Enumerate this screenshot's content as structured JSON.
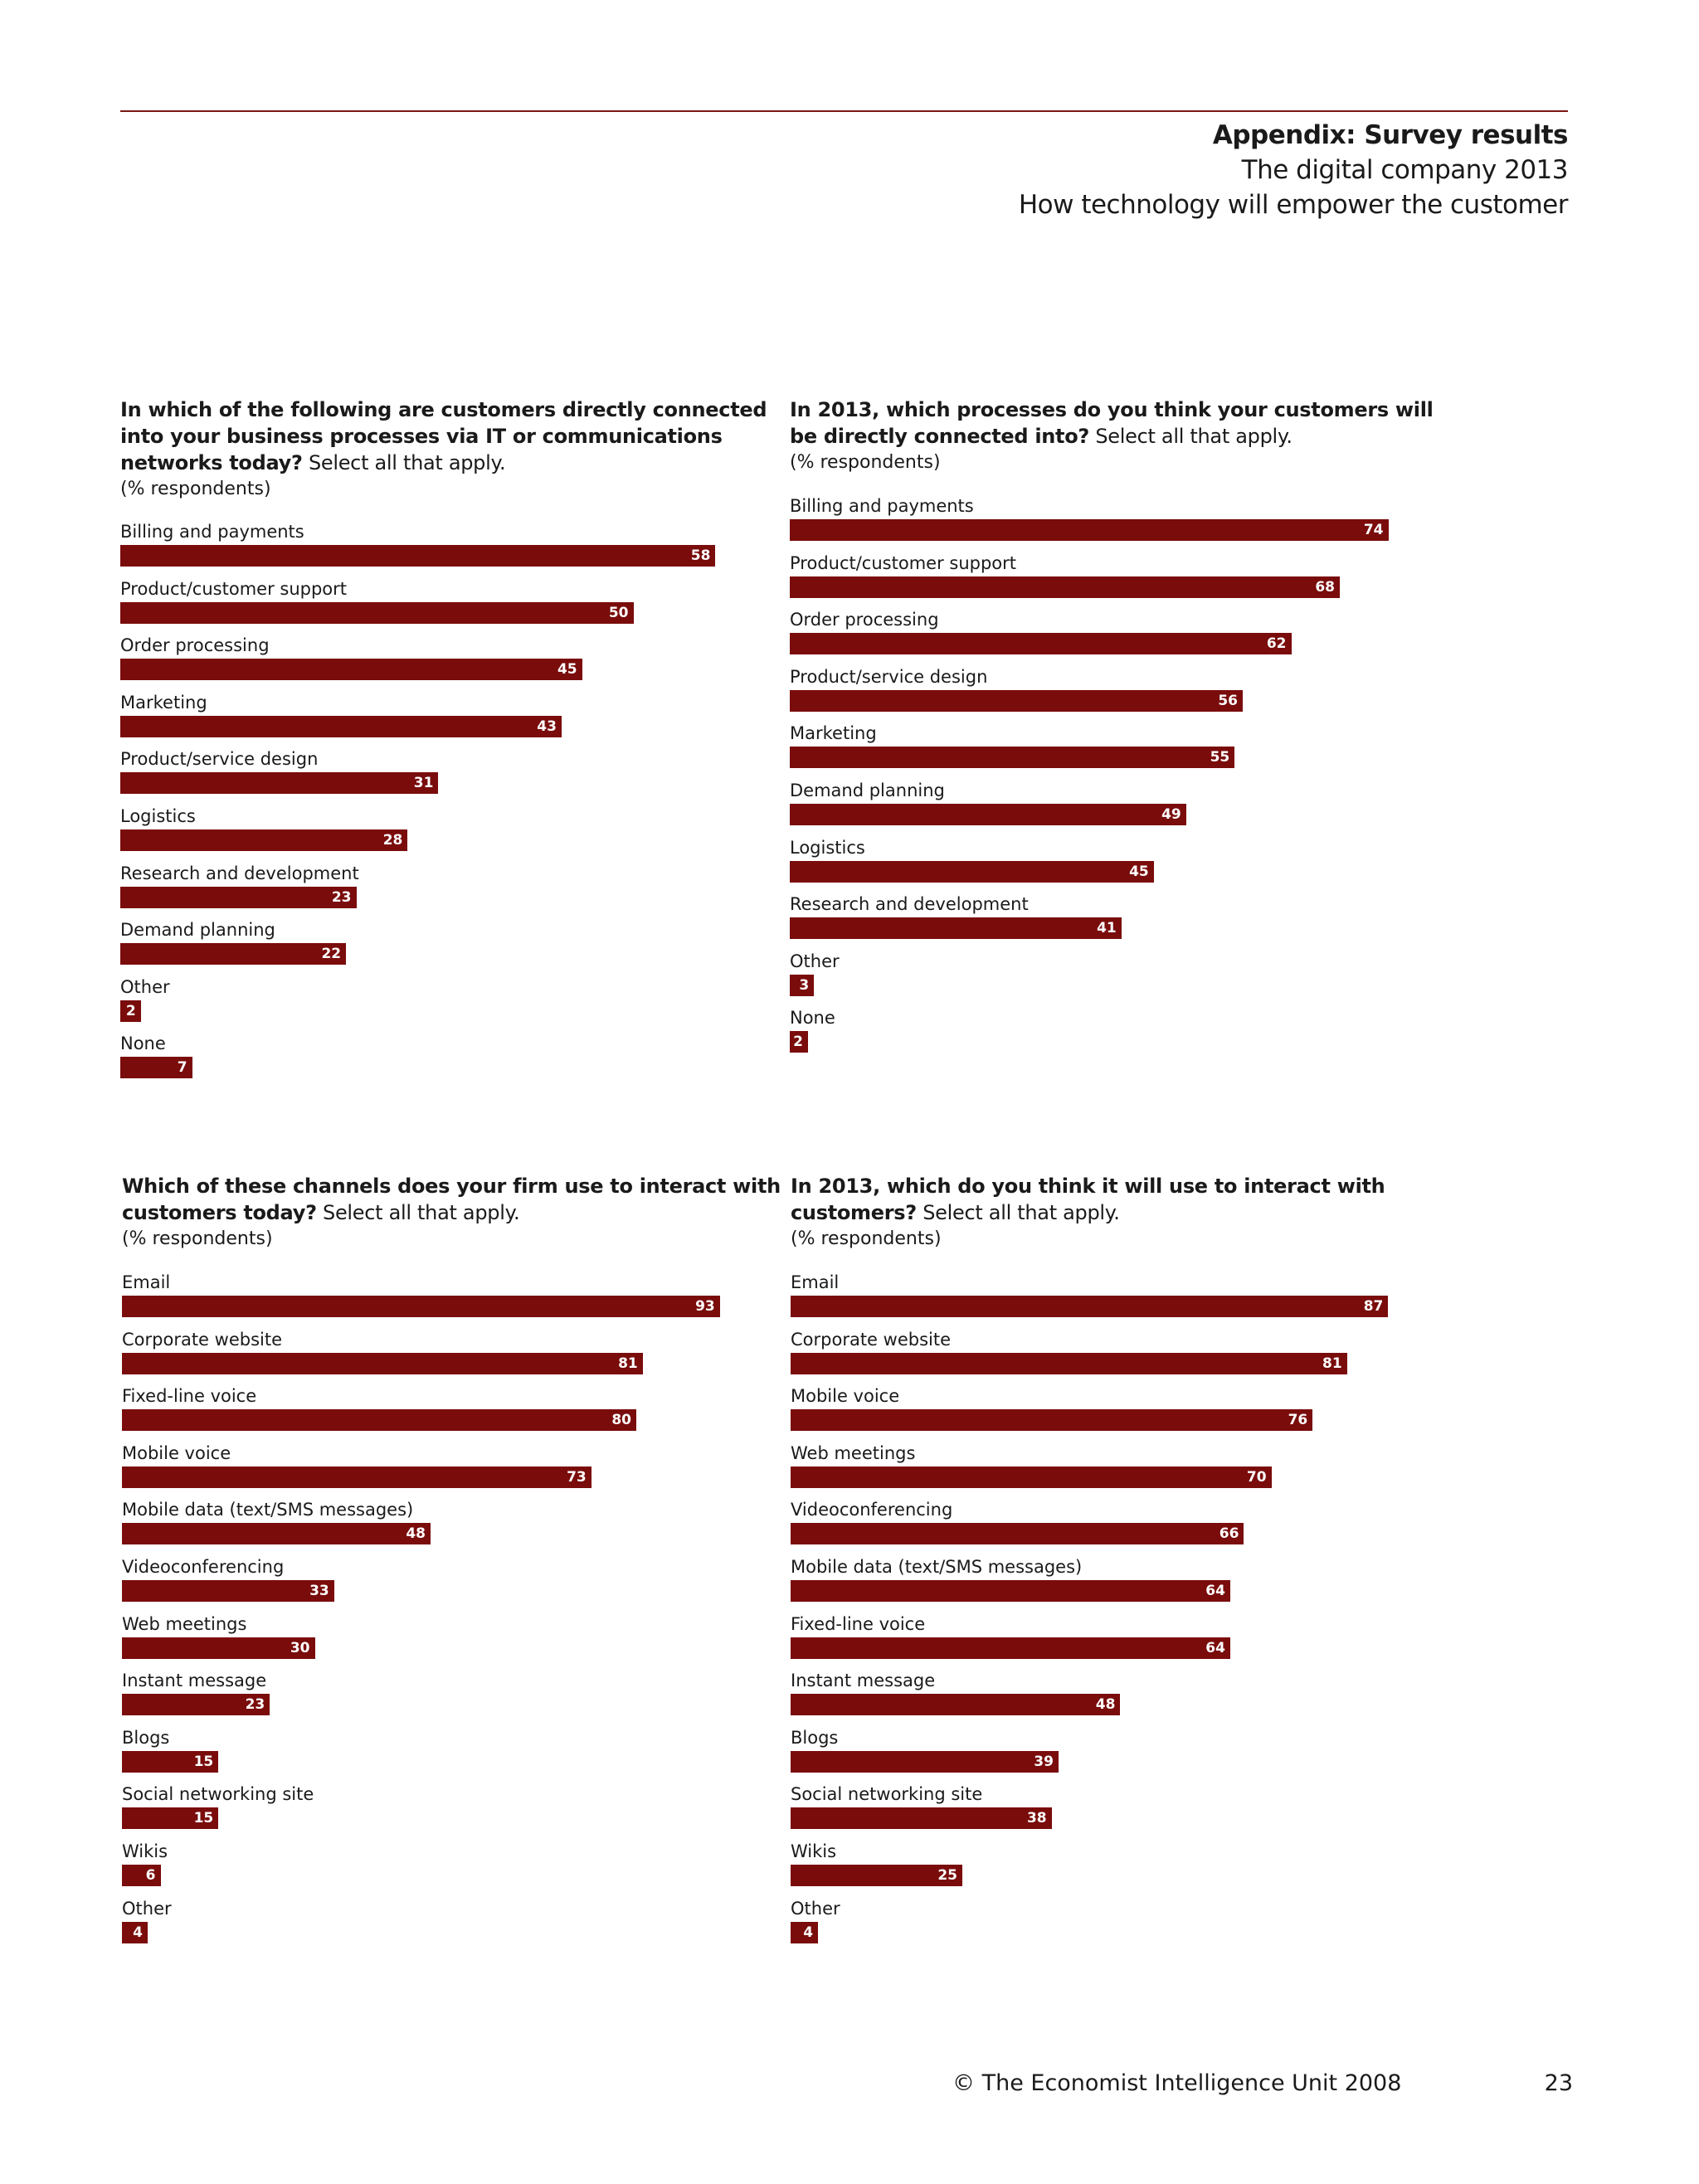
{
  "header": {
    "section": "Appendix: Survey results",
    "report_title": "The digital company 2013",
    "report_subtitle": "How technology will empower the customer"
  },
  "footer": {
    "copyright": "© The Economist Intelligence Unit 2008",
    "page_number": "23"
  },
  "colors": {
    "bar": "#7a0c0c",
    "rule": "#7a1616"
  },
  "chart_data": [
    {
      "type": "bar",
      "orientation": "horizontal",
      "title_bold": "In which of the following are customers directly connected into your business processes via IT or communications networks today?",
      "title_rest": " Select all that apply.",
      "unit": "(% respondents)",
      "categories": [
        "Billing and payments",
        "Product/customer support",
        "Order processing",
        "Marketing",
        "Product/service design",
        "Logistics",
        "Research and development",
        "Demand planning",
        "Other",
        "None"
      ],
      "values": [
        58,
        50,
        45,
        43,
        31,
        28,
        23,
        22,
        2,
        7
      ]
    },
    {
      "type": "bar",
      "orientation": "horizontal",
      "title_bold": "In 2013, which processes do you think your customers will be directly connected into?",
      "title_rest": " Select all that apply.",
      "unit": "(% respondents)",
      "categories": [
        "Billing and payments",
        "Product/customer support",
        "Order processing",
        "Product/service design",
        "Marketing",
        "Demand planning",
        "Logistics",
        "Research and development",
        "Other",
        "None"
      ],
      "values": [
        74,
        68,
        62,
        56,
        55,
        49,
        45,
        41,
        3,
        2
      ]
    },
    {
      "type": "bar",
      "orientation": "horizontal",
      "title_bold": "Which of these channels does your firm use to interact with customers today?",
      "title_rest": " Select all that apply.",
      "unit": "(% respondents)",
      "categories": [
        "Email",
        "Corporate website",
        "Fixed-line voice",
        "Mobile voice",
        "Mobile data (text/SMS messages)",
        "Videoconferencing",
        "Web meetings",
        "Instant message",
        "Blogs",
        "Social networking site",
        "Wikis",
        "Other"
      ],
      "values": [
        93,
        81,
        80,
        73,
        48,
        33,
        30,
        23,
        15,
        15,
        6,
        4
      ]
    },
    {
      "type": "bar",
      "orientation": "horizontal",
      "title_bold": "In 2013, which do you think it will use to interact with customers?",
      "title_rest": " Select all that apply.",
      "unit": "(% respondents)",
      "categories": [
        "Email",
        "Corporate website",
        "Mobile voice",
        "Web meetings",
        "Videoconferencing",
        "Mobile data (text/SMS messages)",
        "Fixed-line voice",
        "Instant message",
        "Blogs",
        "Social networking site",
        "Wikis",
        "Other"
      ],
      "values": [
        87,
        81,
        76,
        70,
        66,
        64,
        64,
        48,
        39,
        38,
        25,
        4
      ]
    }
  ]
}
